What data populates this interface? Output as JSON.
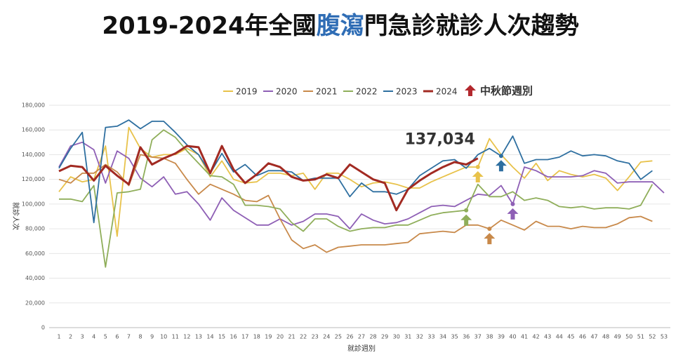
{
  "chart_data": {
    "type": "line",
    "title": [
      "2019-2024年全國",
      "腹瀉",
      "門急診就診人次趨勢"
    ],
    "title_colors": [
      "#111111",
      "#2f6db5",
      "#111111"
    ],
    "x_label": "就診週別",
    "y_label": "就診人次",
    "legend_note": "中秋節週別",
    "legend_note_color": "#b3282d",
    "categories": [
      1,
      2,
      3,
      4,
      5,
      6,
      7,
      8,
      9,
      10,
      11,
      12,
      13,
      14,
      15,
      16,
      17,
      18,
      19,
      20,
      21,
      22,
      23,
      24,
      25,
      26,
      27,
      28,
      29,
      30,
      31,
      32,
      33,
      34,
      35,
      36,
      37,
      38,
      39,
      40,
      41,
      42,
      43,
      44,
      45,
      46,
      47,
      48,
      49,
      50,
      51,
      52,
      53
    ],
    "ylim": [
      0,
      180000
    ],
    "yticks": [
      0,
      {
        "value": 20000,
        "label": "20,000"
      },
      {
        "value": 40000,
        "label": "40,000"
      },
      {
        "value": 60000,
        "label": "60,000"
      },
      {
        "value": 80000,
        "label": "80,000"
      },
      {
        "value": 100000,
        "label": "100,000"
      },
      {
        "value": 120000,
        "label": "120,000"
      },
      {
        "value": 140000,
        "label": "140,000"
      },
      {
        "value": 160000,
        "label": "160,000"
      },
      {
        "value": 180000,
        "label": "180,000"
      }
    ],
    "grid": true,
    "series": [
      {
        "name": "2019",
        "color": "#e8c24a",
        "mid_autumn_week": 37,
        "values": [
          110000,
          122000,
          118000,
          120000,
          147000,
          74000,
          162000,
          145000,
          138000,
          140000,
          140000,
          145000,
          140000,
          122000,
          135000,
          120000,
          117000,
          118000,
          125000,
          125000,
          123000,
          125000,
          112000,
          125000,
          125000,
          120000,
          114000,
          117000,
          118000,
          116000,
          113000,
          113000,
          118000,
          122000,
          126000,
          130000,
          130000,
          153000,
          140000,
          130000,
          121000,
          133000,
          119000,
          127000,
          124000,
          122000,
          124000,
          121000,
          111000,
          122000,
          134000,
          135000,
          null
        ]
      },
      {
        "name": "2020",
        "color": "#8e5fb5",
        "mid_autumn_week": 40,
        "values": [
          130000,
          147000,
          150000,
          144000,
          117000,
          143000,
          137000,
          121000,
          114000,
          122000,
          108000,
          110000,
          100000,
          87000,
          105000,
          95000,
          89000,
          83000,
          83000,
          88000,
          83000,
          86000,
          92000,
          92000,
          90000,
          80000,
          92000,
          87000,
          84000,
          85000,
          88000,
          93000,
          98000,
          99000,
          98000,
          103000,
          108000,
          107000,
          115000,
          100000,
          130000,
          127000,
          122000,
          122000,
          122000,
          123000,
          127000,
          125000,
          117000,
          118000,
          118000,
          118000,
          109000
        ]
      },
      {
        "name": "2021",
        "color": "#c8894a",
        "mid_autumn_week": 38,
        "values": [
          120000,
          117000,
          125000,
          125000,
          132000,
          126000,
          115000,
          140000,
          138000,
          137000,
          133000,
          120000,
          108000,
          116000,
          112000,
          108000,
          103000,
          102000,
          107000,
          88000,
          71000,
          64000,
          67000,
          61000,
          65000,
          66000,
          67000,
          67000,
          67000,
          68000,
          69000,
          76000,
          77000,
          78000,
          77000,
          83000,
          83000,
          80000,
          87000,
          83000,
          79000,
          86000,
          82000,
          82000,
          80000,
          82000,
          81000,
          81000,
          84000,
          89000,
          90000,
          86000,
          null
        ]
      },
      {
        "name": "2022",
        "color": "#8fae5a",
        "mid_autumn_week": 36,
        "values": [
          104000,
          104000,
          102000,
          115000,
          49000,
          109000,
          110000,
          112000,
          152000,
          160000,
          154000,
          143000,
          133000,
          123000,
          122000,
          116000,
          99000,
          99000,
          98000,
          96000,
          85000,
          78000,
          88000,
          88000,
          82000,
          78000,
          80000,
          81000,
          81000,
          83000,
          83000,
          87000,
          91000,
          93000,
          94000,
          95000,
          116000,
          106000,
          106000,
          110000,
          103000,
          105000,
          103000,
          98000,
          97000,
          98000,
          96000,
          97000,
          97000,
          96000,
          99000,
          116000,
          null
        ]
      },
      {
        "name": "2023",
        "color": "#2e6fa0",
        "mid_autumn_week": 39,
        "values": [
          129000,
          145000,
          158000,
          85000,
          162000,
          163000,
          168000,
          161000,
          167000,
          167000,
          158000,
          148000,
          140000,
          125000,
          141000,
          126000,
          132000,
          123000,
          127000,
          127000,
          126000,
          119000,
          121000,
          121000,
          121000,
          106000,
          117000,
          110000,
          110000,
          108000,
          112000,
          123000,
          129000,
          135000,
          136000,
          129000,
          140000,
          145000,
          139000,
          155000,
          133000,
          136000,
          136000,
          138000,
          143000,
          139000,
          140000,
          139000,
          135000,
          133000,
          120000,
          127000,
          null
        ]
      },
      {
        "name": "2024",
        "color": "#a22a22",
        "width": 3,
        "values": [
          126600,
          131000,
          130000,
          119000,
          131000,
          123000,
          116000,
          146000,
          132000,
          137000,
          141000,
          147000,
          146000,
          125000,
          147000,
          128000,
          117000,
          124000,
          133000,
          130000,
          122000,
          119000,
          120000,
          124000,
          121000,
          132000,
          126000,
          120000,
          117000,
          95000,
          112000,
          119000,
          125000,
          130000,
          134000,
          132000,
          137034,
          null,
          null,
          null,
          null,
          null,
          null,
          null,
          null,
          null,
          null,
          null,
          null,
          null,
          null,
          null,
          null
        ],
        "value_labels": [
          null,
          null,
          null,
          null,
          null,
          null,
          null,
          null,
          null,
          null,
          null,
          null,
          null,
          null,
          null,
          null,
          null,
          null,
          null,
          null,
          null,
          null,
          null,
          null,
          null,
          null,
          null,
          null,
          null,
          null,
          null,
          null,
          null,
          null,
          null,
          null,
          "137,034",
          null,
          null,
          null,
          null,
          null,
          null,
          null,
          null,
          null,
          null,
          null,
          null,
          null,
          null,
          null,
          null
        ]
      }
    ]
  }
}
